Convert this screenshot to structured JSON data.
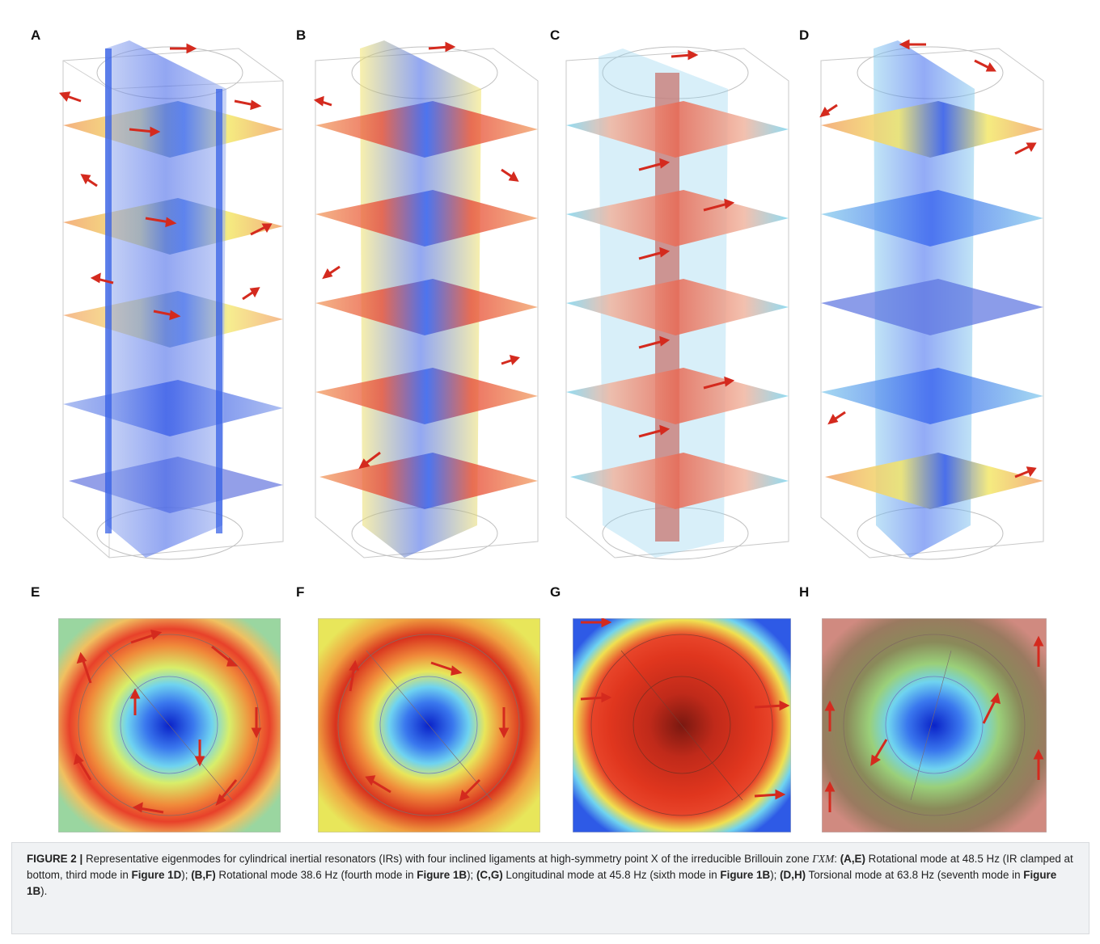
{
  "panels_top": [
    {
      "label": "A",
      "mode": "rotational-clamped"
    },
    {
      "label": "B",
      "mode": "rotational"
    },
    {
      "label": "C",
      "mode": "longitudinal"
    },
    {
      "label": "D",
      "mode": "torsional"
    }
  ],
  "panels_bottom": [
    {
      "label": "E",
      "mode": "rotational-clamped"
    },
    {
      "label": "F",
      "mode": "rotational"
    },
    {
      "label": "G",
      "mode": "longitudinal"
    },
    {
      "label": "H",
      "mode": "torsional"
    }
  ],
  "colors": {
    "arrow": "#d42a1e",
    "red": "#e8412a",
    "blue": "#1a45d8",
    "cyan": "#6fd3f0",
    "yellow": "#f2e45a",
    "caption_bg": "#f0f2f4"
  },
  "caption": {
    "fig": "FIGURE 2 |",
    "t1": " Representative eigenmodes for cylindrical inertial resonators (IRs) with four inclined ligaments at high-symmetry point X of the irreducible Brillouin zone ",
    "gxm": "ΓXM",
    "t2": ": ",
    "ae": "(A,E)",
    "t3": " Rotational mode at 48.5 Hz (IR clamped at bottom, third mode in ",
    "fig1d": "Figure 1D",
    "t4": "); ",
    "bf": "(B,F)",
    "t5": " Rotational mode 38.6 Hz (fourth mode in ",
    "fig1b_a": "Figure 1B",
    "t6": "); ",
    "cg": "(C,G)",
    "t7": " Longitudinal mode at 45.8 Hz (sixth mode in ",
    "fig1b_b": "Figure 1B",
    "t8": "); ",
    "dh": "(D,H)",
    "t9": " Torsional mode at 63.8 Hz (seventh mode in ",
    "fig1b_c": "Figure 1B",
    "t10": ")."
  }
}
